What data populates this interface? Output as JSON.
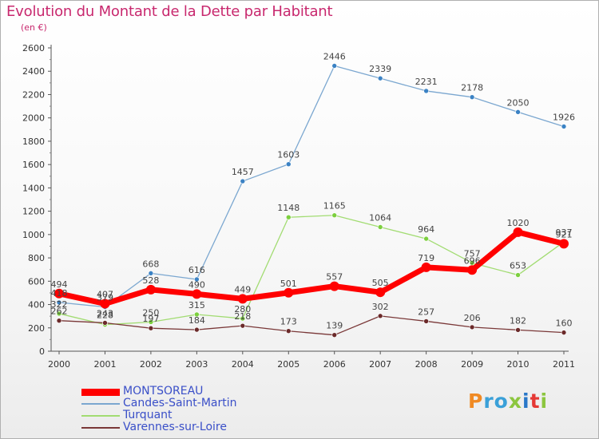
{
  "title": "Evolution du Montant de la Dette par Habitant",
  "subtitle": "(en €)",
  "logo": "Proxiti",
  "chart_data": {
    "type": "line",
    "title": "Evolution du Montant de la Dette par Habitant",
    "subtitle": "(en €)",
    "xlabel": "",
    "ylabel": "",
    "x": [
      "2000",
      "2001",
      "2002",
      "2003",
      "2004",
      "2005",
      "2006",
      "2007",
      "2008",
      "2009",
      "2010",
      "2011"
    ],
    "ylim": [
      0,
      2600
    ],
    "yticks": [
      0,
      200,
      400,
      600,
      800,
      1000,
      1200,
      1400,
      1600,
      1800,
      2000,
      2200,
      2400,
      2600
    ],
    "grid": false,
    "legend_position": "bottom-left",
    "series": [
      {
        "name": "Candes-Saint-Martin",
        "color": "#7ba7d0",
        "marker": "#3b82c4",
        "width": 1.3,
        "values": [
          418,
          379,
          668,
          616,
          1457,
          1603,
          2446,
          2339,
          2231,
          2178,
          2050,
          1926
        ]
      },
      {
        "name": "Turquant",
        "color": "#a2dc72",
        "marker": "#7ccf3e",
        "width": 1.3,
        "values": [
          322,
          228,
          250,
          315,
          280,
          1148,
          1165,
          1064,
          964,
          757,
          653,
          937
        ]
      },
      {
        "name": "Varennes-sur-Loire",
        "color": "#7a3838",
        "marker": "#6b2a2a",
        "width": 1.3,
        "values": [
          262,
          243,
          197,
          184,
          218,
          173,
          139,
          302,
          257,
          206,
          182,
          160
        ]
      },
      {
        "name": "MONTSOREAU",
        "color": "#ff0000",
        "marker": "#ff0000",
        "width": 7,
        "values": [
          494,
          407,
          528,
          490,
          449,
          501,
          557,
          505,
          719,
          696,
          1020,
          921
        ]
      }
    ]
  },
  "logo_colors": [
    "#f08a24",
    "#3aa0d8",
    "#3aa0d8",
    "#8cc63f",
    "#2a78c8",
    "#e53935",
    "#8cc63f"
  ]
}
